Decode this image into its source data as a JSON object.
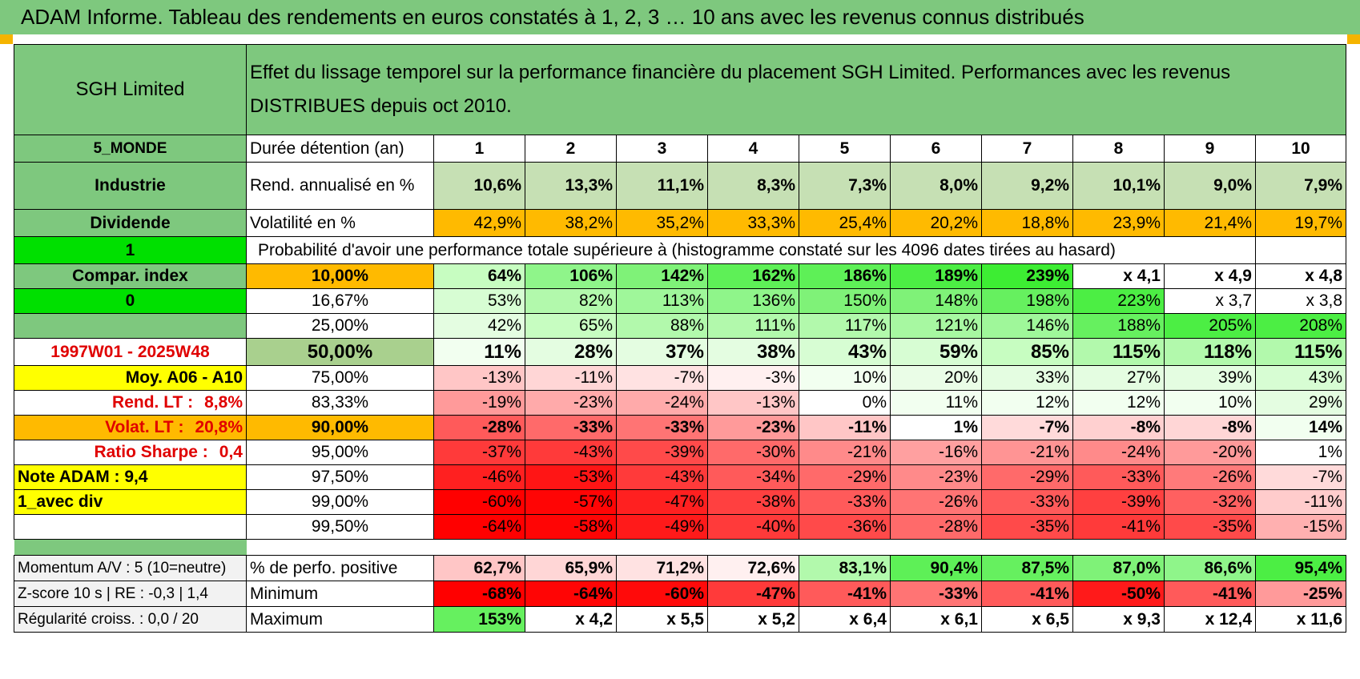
{
  "title": "ADAM Informe. Tableau des rendements en euros constatés à 1, 2, 3 … 10 ans avec les revenus connus distribués",
  "fund_name": "SGH Limited",
  "header_text": "Effet du lissage temporel sur la performance financière du placement SGH Limited. Performances avec les revenus DISTRIBUES depuis oct 2010.",
  "left_labels": {
    "zone": "5_MONDE",
    "sector": "Industrie",
    "dividend": "Dividende",
    "flag1": "1",
    "compar": "Compar. index",
    "flag0": "0",
    "period": "1997W01 - 2025W48",
    "moy": "Moy. A06 - A10",
    "rend_lt_label": "Rend. LT :",
    "rend_lt_value": "8,8%",
    "volat_lt_label": "Volat. LT :",
    "volat_lt_value": "20,8%",
    "sharpe_label": "Ratio Sharpe :",
    "sharpe_value": "0,4",
    "note": "Note ADAM : 9,4",
    "avec_div": "1_avec div",
    "momentum": "Momentum A/V : 5 (10=neutre)",
    "zscore": "Z-score 10 s | RE : -0,3 | 1,4",
    "regularite": "Régularité croiss. : 0,0 / 20"
  },
  "durations_label": "Durée détention (an)",
  "durations": [
    "1",
    "2",
    "3",
    "4",
    "5",
    "6",
    "7",
    "8",
    "9",
    "10"
  ],
  "rend_label": "Rend. annualisé en %",
  "rend": [
    "10,6%",
    "13,3%",
    "11,1%",
    "8,3%",
    "7,3%",
    "8,0%",
    "9,2%",
    "10,1%",
    "9,0%",
    "7,9%"
  ],
  "vol_label": "Volatilité en %",
  "vol": [
    "42,9%",
    "38,2%",
    "35,2%",
    "33,3%",
    "25,4%",
    "20,2%",
    "18,8%",
    "23,9%",
    "21,4%",
    "19,7%"
  ],
  "proba_text": "Probabilité d'avoir une performance totale supérieure à (histogramme constaté sur les 4096 dates tirées au hasard)",
  "prob_rows": [
    {
      "p": "10,00%",
      "bold": true,
      "pcolor": "#ffba00",
      "v": [
        "64%",
        "106%",
        "142%",
        "162%",
        "186%",
        "189%",
        "239%",
        "x 4,1",
        "x 4,9",
        "x 4,8"
      ],
      "c": [
        "#c7fdc1",
        "#8ff58a",
        "#7ff278",
        "#5ef057",
        "#5ef057",
        "#4cee44",
        "#3ded33",
        "#ffffff",
        "#ffffff",
        "#ffffff"
      ]
    },
    {
      "p": "16,67%",
      "bold": false,
      "pcolor": "#ffffff",
      "v": [
        "53%",
        "82%",
        "113%",
        "136%",
        "150%",
        "148%",
        "198%",
        "223%",
        "x 3,7",
        "x 3,8"
      ],
      "c": [
        "#d7fdd3",
        "#b2f9ac",
        "#9ff79a",
        "#8ff58a",
        "#7ff278",
        "#7ff278",
        "#66f05f",
        "#4cee44",
        "#ffffff",
        "#ffffff"
      ]
    },
    {
      "p": "25,00%",
      "bold": false,
      "pcolor": "#ffffff",
      "v": [
        "42%",
        "65%",
        "88%",
        "111%",
        "117%",
        "121%",
        "146%",
        "188%",
        "205%",
        "208%"
      ],
      "c": [
        "#e4fde1",
        "#c7fdc1",
        "#b2f9ac",
        "#b2f9ac",
        "#b2f9ac",
        "#a7f8a1",
        "#9ff79a",
        "#66f05f",
        "#4cee44",
        "#4cee44"
      ]
    },
    {
      "p": "50,00%",
      "bold": true,
      "big": true,
      "pcolor": "#a9d08e",
      "v": [
        "11%",
        "28%",
        "37%",
        "38%",
        "43%",
        "59%",
        "85%",
        "115%",
        "118%",
        "115%"
      ],
      "c": [
        "#f2fff0",
        "#e4fde1",
        "#e4fde1",
        "#e4fde1",
        "#d7fdd3",
        "#d7fdd3",
        "#c7fdc1",
        "#b2f9ac",
        "#b2f9ac",
        "#b2f9ac"
      ]
    },
    {
      "p": "75,00%",
      "bold": false,
      "pcolor": "#ffffff",
      "v": [
        "-13%",
        "-11%",
        "-7%",
        "-3%",
        "10%",
        "20%",
        "33%",
        "27%",
        "39%",
        "43%"
      ],
      "c": [
        "#ffc6c6",
        "#ffd6d6",
        "#ffe2e2",
        "#fff0f0",
        "#f2fff0",
        "#eafde7",
        "#e4fde1",
        "#e4fde1",
        "#e4fde1",
        "#d7fdd3"
      ]
    },
    {
      "p": "83,33%",
      "bold": false,
      "pcolor": "#ffffff",
      "v": [
        "-19%",
        "-23%",
        "-24%",
        "-13%",
        "0%",
        "11%",
        "12%",
        "12%",
        "10%",
        "29%"
      ],
      "c": [
        "#ff9a9a",
        "#ffaaaa",
        "#ffaaaa",
        "#ffc6c6",
        "#ffffff",
        "#f2fff0",
        "#f2fff0",
        "#f2fff0",
        "#f2fff0",
        "#e4fde1"
      ]
    },
    {
      "p": "90,00%",
      "bold": true,
      "pcolor": "#ffba00",
      "v": [
        "-28%",
        "-33%",
        "-33%",
        "-23%",
        "-11%",
        "1%",
        "-7%",
        "-8%",
        "-8%",
        "14%"
      ],
      "c": [
        "#ff5a5a",
        "#ff6a6a",
        "#ff7474",
        "#ff9a9a",
        "#ffc6c6",
        "#ffffff",
        "#ffdada",
        "#ffd0d0",
        "#ffd6d6",
        "#f2fff0"
      ]
    },
    {
      "p": "95,00%",
      "bold": false,
      "pcolor": "#ffffff",
      "v": [
        "-37%",
        "-43%",
        "-39%",
        "-30%",
        "-21%",
        "-16%",
        "-21%",
        "-24%",
        "-20%",
        "1%"
      ],
      "c": [
        "#ff3a3a",
        "#ff3a3a",
        "#ff4a4a",
        "#ff6a6a",
        "#ff8a8a",
        "#ffa0a0",
        "#ff9494",
        "#ff8a8a",
        "#ff9a9a",
        "#ffffff"
      ]
    },
    {
      "p": "97,50%",
      "bold": false,
      "pcolor": "#ffffff",
      "v": [
        "-46%",
        "-53%",
        "-43%",
        "-34%",
        "-29%",
        "-23%",
        "-29%",
        "-33%",
        "-26%",
        "-7%"
      ],
      "c": [
        "#ff2020",
        "#ff1515",
        "#ff3a3a",
        "#ff5a5a",
        "#ff6a6a",
        "#ff8a8a",
        "#ff6a6a",
        "#ff5a5a",
        "#ff7a7a",
        "#ffdada"
      ]
    },
    {
      "p": "99,00%",
      "bold": false,
      "pcolor": "#ffffff",
      "v": [
        "-60%",
        "-57%",
        "-47%",
        "-38%",
        "-33%",
        "-26%",
        "-33%",
        "-39%",
        "-32%",
        "-11%"
      ],
      "c": [
        "#ff0000",
        "#ff0505",
        "#ff2020",
        "#ff4040",
        "#ff5a5a",
        "#ff7474",
        "#ff5a5a",
        "#ff4040",
        "#ff6060",
        "#ffcccc"
      ]
    },
    {
      "p": "99,50%",
      "bold": false,
      "pcolor": "#ffffff",
      "v": [
        "-64%",
        "-58%",
        "-49%",
        "-40%",
        "-36%",
        "-28%",
        "-35%",
        "-41%",
        "-35%",
        "-15%"
      ],
      "c": [
        "#ff0000",
        "#ff0505",
        "#ff1a1a",
        "#ff3a3a",
        "#ff4a4a",
        "#ff6a6a",
        "#ff4a4a",
        "#ff3a3a",
        "#ff4a4a",
        "#ffb0b0"
      ]
    }
  ],
  "bottom_rows": [
    {
      "label": "% de perfo. positive",
      "v": [
        "62,7%",
        "65,9%",
        "71,2%",
        "72,6%",
        "83,1%",
        "90,4%",
        "87,5%",
        "87,0%",
        "86,6%",
        "95,4%"
      ],
      "c": [
        "#ffc6c6",
        "#ffd6d6",
        "#ffe2e2",
        "#fff0f0",
        "#b2f9ac",
        "#5ef057",
        "#66f05f",
        "#7ff278",
        "#8ff58a",
        "#4cee44"
      ]
    },
    {
      "label": "Minimum",
      "v": [
        "-68%",
        "-64%",
        "-60%",
        "-47%",
        "-41%",
        "-33%",
        "-41%",
        "-50%",
        "-41%",
        "-25%"
      ],
      "c": [
        "#ff0000",
        "#ff0505",
        "#ff0a0a",
        "#ff3a3a",
        "#ff5a5a",
        "#ff7474",
        "#ff5a5a",
        "#ff1a1a",
        "#ff5a5a",
        "#ff9a9a"
      ]
    },
    {
      "label": "Maximum",
      "v": [
        "153%",
        "x 4,2",
        "x 5,5",
        "x 5,2",
        "x 6,4",
        "x 6,1",
        "x 6,5",
        "x 9,3",
        "x 12,4",
        "x 11,6"
      ],
      "c": [
        "#66f05f",
        "#ffffff",
        "#ffffff",
        "#ffffff",
        "#ffffff",
        "#ffffff",
        "#ffffff",
        "#ffffff",
        "#ffffff",
        "#ffffff"
      ]
    }
  ],
  "colors": {
    "header_green": "#7ec87e",
    "orange": "#ffba00",
    "yellow": "#ffff00",
    "bright_green": "#00e000",
    "label_red": "#e00000"
  }
}
